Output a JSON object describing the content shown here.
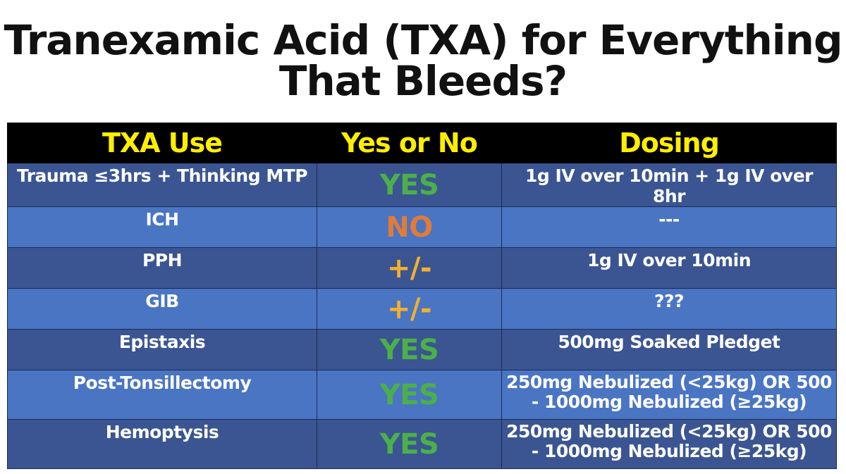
{
  "title": {
    "line1": "Tranexamic Acid (TXA) for Everything",
    "line2": "That Bleeds?"
  },
  "table": {
    "headers": [
      "TXA Use",
      "Yes or No",
      "Dosing"
    ],
    "rows": [
      {
        "use": "Trauma ≤3hrs + Thinking MTP",
        "answer": "YES",
        "dosing": "1g IV over 10min + 1g IV over 8hr"
      },
      {
        "use": "ICH",
        "answer": "NO",
        "dosing": "---"
      },
      {
        "use": "PPH",
        "answer": "+/-",
        "dosing": "1g IV over 10min"
      },
      {
        "use": "GIB",
        "answer": "+/-",
        "dosing": "???"
      },
      {
        "use": "Epistaxis",
        "answer": "YES",
        "dosing": "500mg Soaked Pledget"
      },
      {
        "use": "Post-Tonsillectomy",
        "answer": "YES",
        "dosing": "250mg Nebulized (<25kg) OR 500 - 1000mg Nebulized (≥25kg)"
      },
      {
        "use": "Hemoptysis",
        "answer": "YES",
        "dosing": "250mg Nebulized (<25kg) OR 500 - 1000mg Nebulized (≥25kg)"
      }
    ]
  },
  "colors": {
    "header_bg": "#000000",
    "header_text": "#ffee00",
    "row_dark": "#3a5591",
    "row_light": "#4a75c3",
    "yes": "#4cb04a",
    "no": "#e07b39",
    "plus_minus": "#f2b12c"
  }
}
